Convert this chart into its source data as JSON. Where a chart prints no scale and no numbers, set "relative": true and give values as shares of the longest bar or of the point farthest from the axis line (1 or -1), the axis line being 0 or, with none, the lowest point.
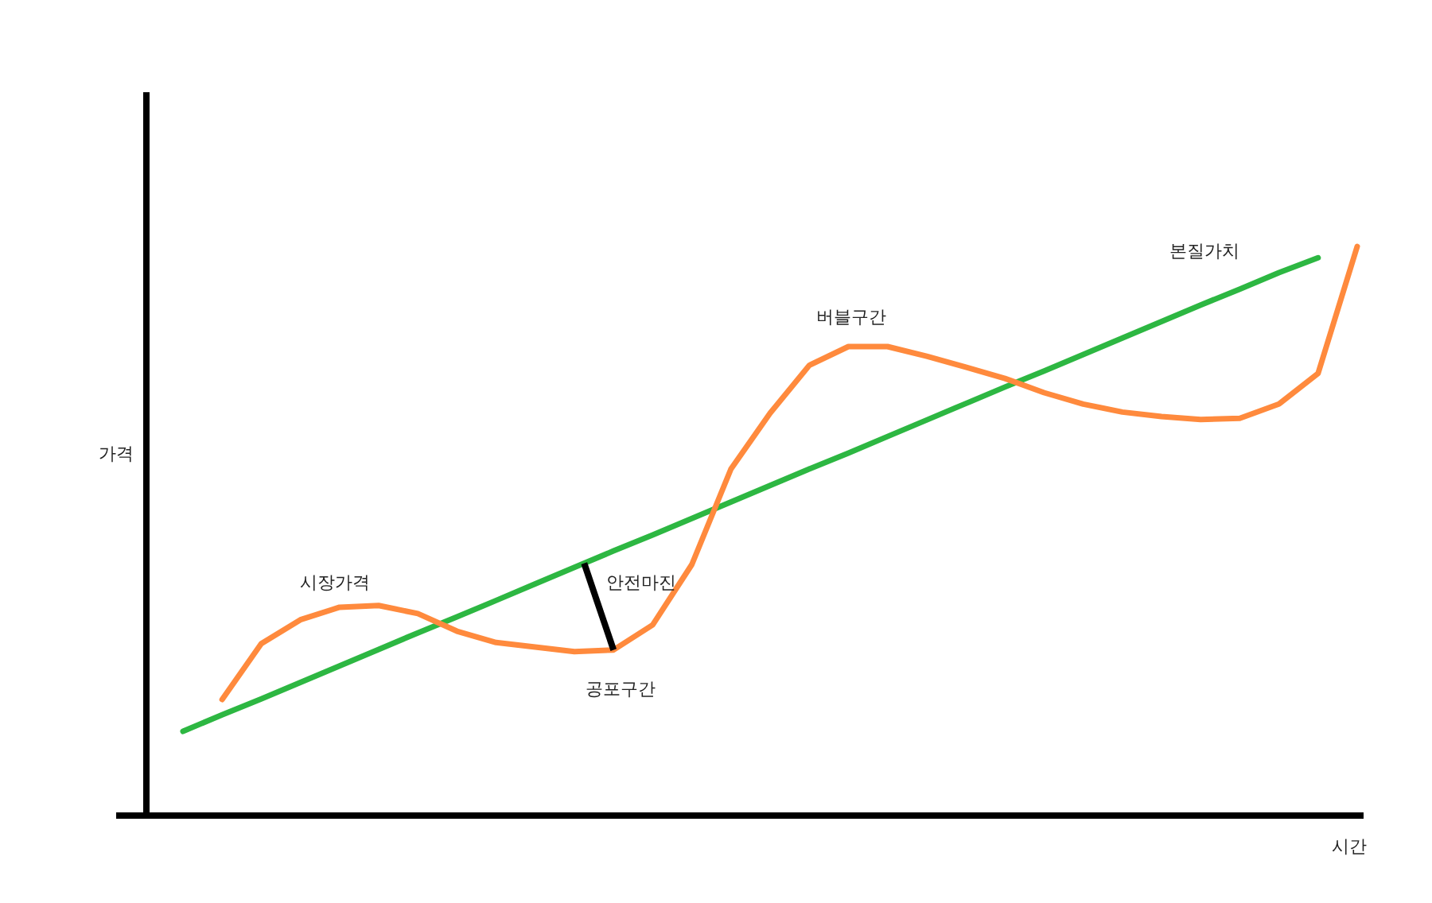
{
  "chart_data": {
    "type": "line",
    "relative": true,
    "xlabel": "시간",
    "ylabel": "가격",
    "categories": [
      null,
      null,
      null,
      null,
      null,
      null,
      null,
      null,
      null,
      null,
      null,
      null,
      null,
      null,
      null,
      null,
      null,
      null,
      null,
      null,
      null,
      null,
      null,
      null,
      null,
      null,
      null,
      null,
      null,
      null,
      null
    ],
    "series": [
      {
        "name": "본질가치",
        "color": "#2db742",
        "values": [
          0.148,
          0.177,
          0.205,
          0.234,
          0.263,
          0.292,
          0.321,
          0.349,
          0.378,
          0.407,
          0.436,
          0.465,
          0.493,
          0.522,
          0.551,
          0.58,
          0.609,
          0.637,
          0.666,
          0.695,
          0.724,
          0.753,
          0.781,
          0.81,
          0.839,
          0.868,
          0.897,
          0.925,
          0.954,
          0.98,
          null
        ]
      },
      {
        "name": "시장가격",
        "color": "#ff8a3d",
        "values": [
          null,
          0.204,
          0.302,
          0.344,
          0.366,
          0.369,
          0.355,
          0.324,
          0.304,
          0.296,
          0.288,
          0.291,
          0.335,
          0.441,
          0.609,
          0.707,
          0.791,
          0.824,
          0.824,
          0.807,
          0.788,
          0.768,
          0.743,
          0.723,
          0.709,
          0.701,
          0.696,
          0.698,
          0.723,
          0.777,
          1
        ]
      }
    ],
    "annotations": [
      "안전마진",
      "공포구간",
      "버블구간"
    ]
  }
}
